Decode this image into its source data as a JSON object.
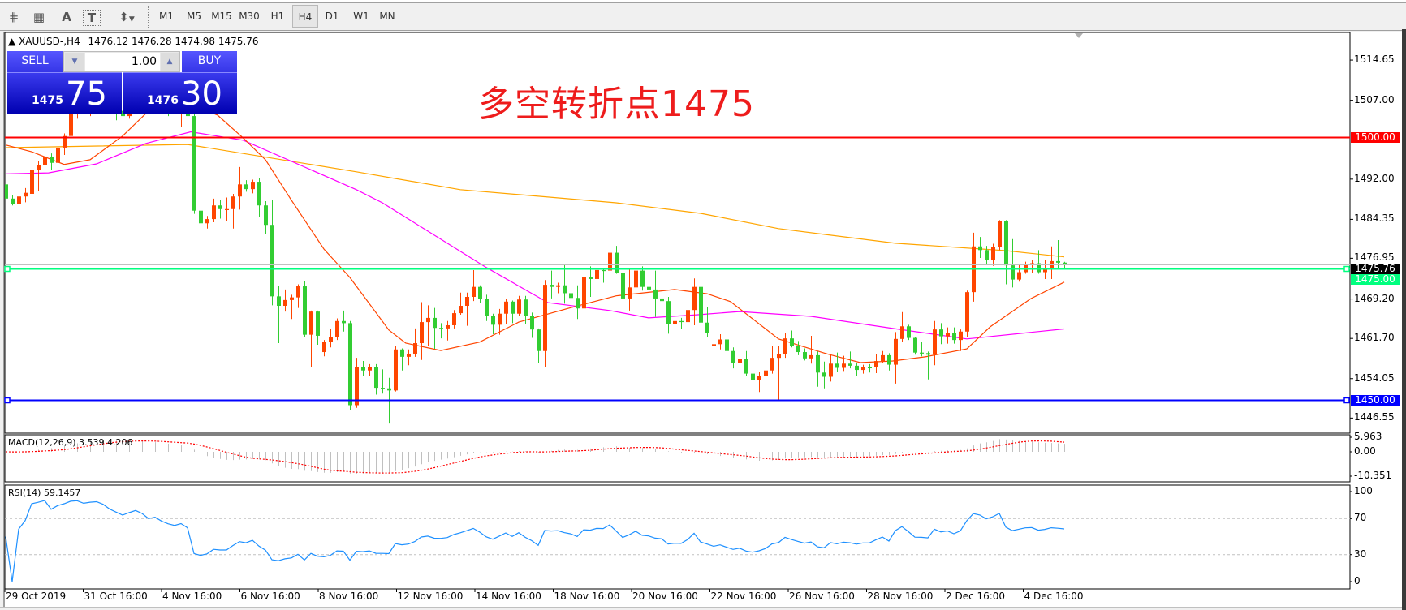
{
  "toolbar": {
    "tools": [
      "fibonacci-expansion-icon",
      "fibonacci-fan-icon",
      "text-icon",
      "text-label-icon",
      "arrows-icon"
    ],
    "tool_glyphs": [
      "⋕",
      "▦",
      "A",
      "T",
      "⬍"
    ],
    "timeframes": [
      "M1",
      "M5",
      "M15",
      "M30",
      "H1",
      "H4",
      "D1",
      "W1",
      "MN"
    ],
    "active_timeframe": "H4"
  },
  "chart": {
    "symbol": "XAUUSD-,H4",
    "ohlc": "1476.12 1476.28 1474.98 1475.76",
    "annotation": "多空转折点1475",
    "price_axis": [
      "1514.65",
      "1507.00",
      "1492.00",
      "1484.35",
      "1476.95",
      "1469.20",
      "1461.70",
      "1454.05",
      "1446.55"
    ],
    "bid_label": "1475.76",
    "level_lines": [
      {
        "label": "1500.00",
        "color": "#ff0000",
        "handles": false
      },
      {
        "label": "1475.00",
        "color": "#00ff7f",
        "handles": true
      },
      {
        "label": "1450.00",
        "color": "#0000ff",
        "handles": true
      }
    ],
    "date_axis": [
      "29 Oct 2019",
      "31 Oct 16:00",
      "4 Nov 16:00",
      "6 Nov 16:00",
      "8 Nov 16:00",
      "12 Nov 16:00",
      "14 Nov 16:00",
      "18 Nov 16:00",
      "20 Nov 16:00",
      "22 Nov 16:00",
      "26 Nov 16:00",
      "28 Nov 16:00",
      "2 Dec 16:00",
      "4 Dec 16:00"
    ],
    "colors": {
      "bull": "#ff4500",
      "bear": "#32cd32",
      "ma_fast": "#ff4500",
      "ma_mid": "#ff00ff",
      "ma_slow": "#ffa500",
      "bid_line": "#c0c0c0"
    },
    "candles_ohlc": [
      [
        1491,
        1492.5,
        1487.8,
        1488.3
      ],
      [
        1488.3,
        1488.9,
        1487,
        1487.3
      ],
      [
        1487.3,
        1488.9,
        1486.9,
        1488.7
      ],
      [
        1488.7,
        1490.3,
        1487.6,
        1489.4
      ],
      [
        1489.2,
        1494,
        1488.4,
        1493.7
      ],
      [
        1493.7,
        1495.5,
        1489.8,
        1494.7
      ],
      [
        1494.7,
        1496.6,
        1481,
        1496.3
      ],
      [
        1496.3,
        1496.9,
        1493.8,
        1495.1
      ],
      [
        1495.1,
        1499.7,
        1493.4,
        1498
      ],
      [
        1498,
        1500.7,
        1496.6,
        1500.2
      ],
      [
        1500.2,
        1505,
        1499.2,
        1504.4
      ],
      [
        1504.4,
        1506,
        1503.5,
        1505.5
      ],
      [
        1505.5,
        1507,
        1504,
        1504.8
      ],
      [
        1504.8,
        1507.5,
        1504,
        1507
      ],
      [
        1507,
        1509,
        1506,
        1508.3
      ],
      [
        1508.3,
        1510,
        1507,
        1507.5
      ],
      [
        1507.5,
        1508.5,
        1505,
        1506
      ],
      [
        1506,
        1507,
        1503.2,
        1505
      ],
      [
        1505,
        1506.5,
        1502.5,
        1504
      ],
      [
        1504,
        1507,
        1503.5,
        1506.5
      ],
      [
        1506.5,
        1509.5,
        1506,
        1509
      ],
      [
        1509,
        1511,
        1507.5,
        1508
      ],
      [
        1508,
        1509,
        1505.5,
        1506.2
      ],
      [
        1506.2,
        1508,
        1505,
        1507.4
      ],
      [
        1507.4,
        1508.5,
        1505.5,
        1506
      ],
      [
        1506,
        1507,
        1504,
        1505
      ],
      [
        1505,
        1506.2,
        1503.5,
        1504.4
      ],
      [
        1504.4,
        1506.5,
        1502,
        1505.5
      ],
      [
        1505.5,
        1506,
        1503,
        1504
      ],
      [
        1504,
        1505,
        1485.4,
        1486
      ],
      [
        1486,
        1486.3,
        1479.5,
        1483.6
      ],
      [
        1483.6,
        1485,
        1482.6,
        1484.4
      ],
      [
        1484.4,
        1488.3,
        1483.8,
        1487
      ],
      [
        1487,
        1488,
        1484.5,
        1486.3
      ],
      [
        1486.2,
        1488.5,
        1484,
        1486.3
      ],
      [
        1486.3,
        1489.2,
        1482.6,
        1488.7
      ],
      [
        1488.7,
        1494.3,
        1486.2,
        1491
      ],
      [
        1491,
        1491.8,
        1489.6,
        1490.1
      ],
      [
        1490.1,
        1491.9,
        1489.3,
        1491.5
      ],
      [
        1491.5,
        1492.2,
        1484.8,
        1487
      ],
      [
        1487,
        1487.8,
        1481.6,
        1483.3
      ],
      [
        1483.3,
        1488,
        1468,
        1469.7
      ],
      [
        1469.7,
        1471.6,
        1460.8,
        1467.9
      ],
      [
        1467.9,
        1471,
        1466.8,
        1469
      ],
      [
        1469,
        1470,
        1465.4,
        1469.5
      ],
      [
        1469.5,
        1472,
        1467.5,
        1471.6
      ],
      [
        1471.6,
        1472.6,
        1462,
        1462.4
      ],
      [
        1462.4,
        1467,
        1456.2,
        1466.8
      ],
      [
        1466.8,
        1467,
        1460.5,
        1462.2
      ],
      [
        1459.1,
        1461.4,
        1458.3,
        1461.1
      ],
      [
        1461,
        1463.5,
        1460,
        1462
      ],
      [
        1462,
        1465.5,
        1461.4,
        1465
      ],
      [
        1465,
        1467,
        1463,
        1464.6
      ],
      [
        1464.6,
        1465,
        1448.1,
        1449
      ],
      [
        1449,
        1458,
        1448.5,
        1456.3
      ],
      [
        1456.3,
        1457.4,
        1454.6,
        1455.6
      ],
      [
        1455.6,
        1456.8,
        1454.6,
        1456.3
      ],
      [
        1456.3,
        1456.8,
        1451,
        1452.3
      ],
      [
        1452.3,
        1455.8,
        1451.2,
        1452.2
      ],
      [
        1452.2,
        1454.2,
        1445.5,
        1451.8
      ],
      [
        1451.8,
        1460.3,
        1451.6,
        1459.6
      ],
      [
        1459.6,
        1459.8,
        1455.6,
        1458.2
      ],
      [
        1458.2,
        1459.6,
        1456.6,
        1458.8
      ],
      [
        1458.8,
        1463.6,
        1458.2,
        1460.8
      ],
      [
        1460.8,
        1468.6,
        1457.6,
        1464.8
      ],
      [
        1464.8,
        1468,
        1460.3,
        1465.6
      ],
      [
        1465.6,
        1467.5,
        1459.7,
        1463.7
      ],
      [
        1463.7,
        1464.6,
        1461.7,
        1463.6
      ],
      [
        1463.6,
        1465,
        1461.3,
        1464.2
      ],
      [
        1464.2,
        1467.1,
        1463.6,
        1466.5
      ],
      [
        1466.5,
        1470.4,
        1466.2,
        1467.9
      ],
      [
        1467.9,
        1470.4,
        1464.1,
        1469.6
      ],
      [
        1469.6,
        1474.7,
        1468.8,
        1471.5
      ],
      [
        1471.5,
        1471.8,
        1468.4,
        1469.2
      ],
      [
        1469.2,
        1470,
        1465,
        1466
      ],
      [
        1466,
        1466.4,
        1462.5,
        1464.3
      ],
      [
        1464.3,
        1467.3,
        1462.4,
        1466.4
      ],
      [
        1466.4,
        1469.2,
        1464.5,
        1468.7
      ],
      [
        1468.7,
        1468.9,
        1464.6,
        1466.4
      ],
      [
        1466.4,
        1469.8,
        1466,
        1469.1
      ],
      [
        1469.1,
        1469.8,
        1464.5,
        1465.9
      ],
      [
        1465.9,
        1466.6,
        1461.8,
        1463.4
      ],
      [
        1463.4,
        1463.6,
        1457,
        1459.3
      ],
      [
        1459.3,
        1472.8,
        1456.3,
        1471.9
      ],
      [
        1471.9,
        1474.6,
        1469.3,
        1471.5
      ],
      [
        1471.5,
        1472.3,
        1470.3,
        1471.8
      ],
      [
        1471.8,
        1475.7,
        1468.3,
        1470.3
      ],
      [
        1470.3,
        1472.8,
        1468.2,
        1469.4
      ],
      [
        1469.4,
        1471.8,
        1465.4,
        1467.4
      ],
      [
        1467.4,
        1473.9,
        1466.3,
        1473.3
      ],
      [
        1473.3,
        1475.4,
        1469.6,
        1473
      ],
      [
        1473,
        1475.1,
        1472,
        1474.7
      ],
      [
        1474.7,
        1475.1,
        1472.3,
        1474.6
      ],
      [
        1474.6,
        1478.3,
        1473.3,
        1478
      ],
      [
        1478,
        1479.3,
        1474,
        1474.1
      ],
      [
        1474.1,
        1474.8,
        1468.5,
        1469.3
      ],
      [
        1469.3,
        1475.1,
        1467,
        1471.4
      ],
      [
        1471.4,
        1475.1,
        1470.4,
        1474.6
      ],
      [
        1474.6,
        1475.4,
        1470.8,
        1471.5
      ],
      [
        1471.5,
        1472.3,
        1469.3,
        1471
      ],
      [
        1471,
        1474.6,
        1465.8,
        1469.3
      ],
      [
        1469.3,
        1472.4,
        1464.3,
        1468.8
      ],
      [
        1468.8,
        1469.6,
        1462.6,
        1464.5
      ],
      [
        1464.5,
        1465.6,
        1463.2,
        1465
      ],
      [
        1465,
        1465.6,
        1463.5,
        1464.8
      ],
      [
        1464.8,
        1469,
        1464,
        1467.1
      ],
      [
        1467.1,
        1473.1,
        1464.2,
        1471.5
      ],
      [
        1471.5,
        1472,
        1461.9,
        1464.7
      ],
      [
        1464.7,
        1467.6,
        1462,
        1462.8
      ],
      [
        1460.3,
        1461.7,
        1459.6,
        1460.6
      ],
      [
        1460.6,
        1462.5,
        1459.6,
        1461.5
      ],
      [
        1461.5,
        1461.9,
        1457.5,
        1459.3
      ],
      [
        1459.3,
        1460,
        1456,
        1457.1
      ],
      [
        1457.1,
        1461.5,
        1454,
        1457.8
      ],
      [
        1457.8,
        1459.3,
        1454.6,
        1455
      ],
      [
        1455,
        1455.7,
        1453.6,
        1453.8
      ],
      [
        1453.8,
        1455.3,
        1451.5,
        1454.5
      ],
      [
        1454.5,
        1458.1,
        1454,
        1455.6
      ],
      [
        1455.6,
        1460.3,
        1455,
        1458
      ],
      [
        1458,
        1460.3,
        1450,
        1458.7
      ],
      [
        1458.7,
        1462.7,
        1458,
        1461.7
      ],
      [
        1461.7,
        1463.2,
        1460,
        1460.3
      ],
      [
        1460.3,
        1461.2,
        1458.5,
        1459.1
      ],
      [
        1459.1,
        1459.8,
        1457.5,
        1457.9
      ],
      [
        1457.9,
        1462.2,
        1456.9,
        1458.5
      ],
      [
        1458.5,
        1459.2,
        1452.5,
        1455.2
      ],
      [
        1455.2,
        1457.3,
        1452.2,
        1454.4
      ],
      [
        1454.4,
        1458.8,
        1453.5,
        1456.9
      ],
      [
        1456.9,
        1459,
        1455.4,
        1456.1
      ],
      [
        1456.1,
        1458.4,
        1455.5,
        1456.9
      ],
      [
        1456.9,
        1459.2,
        1456,
        1456.5
      ],
      [
        1456.5,
        1457,
        1454.6,
        1455.7
      ],
      [
        1455.7,
        1456.7,
        1455,
        1456.2
      ],
      [
        1456.2,
        1456.8,
        1455.2,
        1456.2
      ],
      [
        1456.2,
        1458.7,
        1455.1,
        1457.4
      ],
      [
        1457.4,
        1459.3,
        1457,
        1458.5
      ],
      [
        1458.5,
        1458.9,
        1455.6,
        1456.7
      ],
      [
        1456.7,
        1462.9,
        1453.1,
        1461.6
      ],
      [
        1461.6,
        1466.7,
        1461,
        1464
      ],
      [
        1464,
        1464.3,
        1461.4,
        1461.8
      ],
      [
        1461.8,
        1462,
        1458.6,
        1459
      ],
      [
        1459,
        1461,
        1458.3,
        1458.9
      ],
      [
        1458.9,
        1459.2,
        1453.9,
        1458.6
      ],
      [
        1458.6,
        1465,
        1456.6,
        1463.4
      ],
      [
        1463.4,
        1464.6,
        1460.6,
        1462.1
      ],
      [
        1462.1,
        1463.8,
        1460.7,
        1462.7
      ],
      [
        1462.7,
        1463.8,
        1460.7,
        1461.4
      ],
      [
        1461.4,
        1463.4,
        1459.3,
        1463
      ],
      [
        1463,
        1470.8,
        1462,
        1470.5
      ],
      [
        1470.5,
        1481.8,
        1468.7,
        1479.2
      ],
      [
        1479.2,
        1481,
        1477,
        1478.5
      ],
      [
        1478.5,
        1479.3,
        1475.8,
        1476.6
      ],
      [
        1476.6,
        1479.7,
        1475.5,
        1479.1
      ],
      [
        1479.1,
        1484.2,
        1478.5,
        1484
      ],
      [
        1484,
        1484.2,
        1472,
        1475.6
      ],
      [
        1475.6,
        1480.6,
        1471.4,
        1472.9
      ],
      [
        1472.9,
        1475.7,
        1472.5,
        1474.3
      ],
      [
        1474.3,
        1476.3,
        1474,
        1475.7
      ],
      [
        1475.7,
        1476.7,
        1474.2,
        1476
      ],
      [
        1476,
        1478.5,
        1474,
        1474.3
      ],
      [
        1474.3,
        1476.6,
        1473,
        1475
      ],
      [
        1475,
        1479.2,
        1473,
        1476.4
      ],
      [
        1476.4,
        1480.4,
        1475,
        1476.1
      ],
      [
        1476.12,
        1476.28,
        1474.98,
        1475.76
      ]
    ],
    "ma_fast": [
      [
        0,
        1498.5
      ],
      [
        4,
        1497.2
      ],
      [
        9,
        1494.8
      ],
      [
        13,
        1495.7
      ],
      [
        18,
        1500.2
      ],
      [
        21.6,
        1504.5
      ],
      [
        24,
        1507
      ],
      [
        28,
        1506.5
      ],
      [
        32.6,
        1504.2
      ],
      [
        36.6,
        1499.8
      ],
      [
        40,
        1495.7
      ],
      [
        44,
        1488
      ],
      [
        49,
        1478.7
      ],
      [
        53,
        1473.3
      ],
      [
        59,
        1463.3
      ],
      [
        61.6,
        1460.8
      ],
      [
        67,
        1459.4
      ],
      [
        73,
        1461
      ],
      [
        79,
        1464.8
      ],
      [
        86.6,
        1467.4
      ],
      [
        94,
        1469.8
      ],
      [
        103,
        1471
      ],
      [
        108,
        1470.2
      ],
      [
        111.6,
        1468.7
      ],
      [
        119,
        1461.6
      ],
      [
        126.6,
        1458.7
      ],
      [
        131.6,
        1457.1
      ],
      [
        136.6,
        1457.4
      ],
      [
        141.6,
        1458.2
      ],
      [
        148,
        1459.7
      ],
      [
        151.6,
        1463.9
      ],
      [
        157.9,
        1469.3
      ],
      [
        163,
        1472.4
      ]
    ],
    "ma_mid": [
      [
        0,
        1493
      ],
      [
        6.6,
        1493.2
      ],
      [
        14,
        1494.9
      ],
      [
        21.6,
        1498.8
      ],
      [
        28.5,
        1501
      ],
      [
        36.6,
        1499.4
      ],
      [
        54,
        1490
      ],
      [
        58,
        1487.5
      ],
      [
        74,
        1475.2
      ],
      [
        83.5,
        1468.5
      ],
      [
        93,
        1467
      ],
      [
        99,
        1465.6
      ],
      [
        106.6,
        1466.2
      ],
      [
        113,
        1466.8
      ],
      [
        124,
        1465.9
      ],
      [
        136.6,
        1463.6
      ],
      [
        148,
        1461.6
      ],
      [
        163,
        1463.5
      ]
    ],
    "ma_slow": [
      [
        0,
        1498
      ],
      [
        28,
        1498.6
      ],
      [
        54,
        1493.4
      ],
      [
        70,
        1490
      ],
      [
        94,
        1487.5
      ],
      [
        107,
        1485.5
      ],
      [
        119,
        1482.6
      ],
      [
        137,
        1479.8
      ],
      [
        154,
        1478.4
      ],
      [
        163,
        1477.2
      ]
    ]
  },
  "one_click": {
    "sell_label": "SELL",
    "buy_label": "BUY",
    "volume": "1.00",
    "sell_price_big": "1475",
    "sell_price_pips": "75",
    "buy_price_big": "1476",
    "buy_price_pips": "30"
  },
  "macd": {
    "label": "MACD(12,26,9) 3.539 4.206",
    "axis": [
      "5.963",
      "0.00",
      "-10.351"
    ],
    "colors": {
      "histogram": "#c0c0c0",
      "signal": "#ff0000"
    }
  },
  "rsi": {
    "label": "RSI(14) 59.1457",
    "axis": [
      "100",
      "70",
      "30",
      "0"
    ],
    "color": "#1e90ff"
  }
}
